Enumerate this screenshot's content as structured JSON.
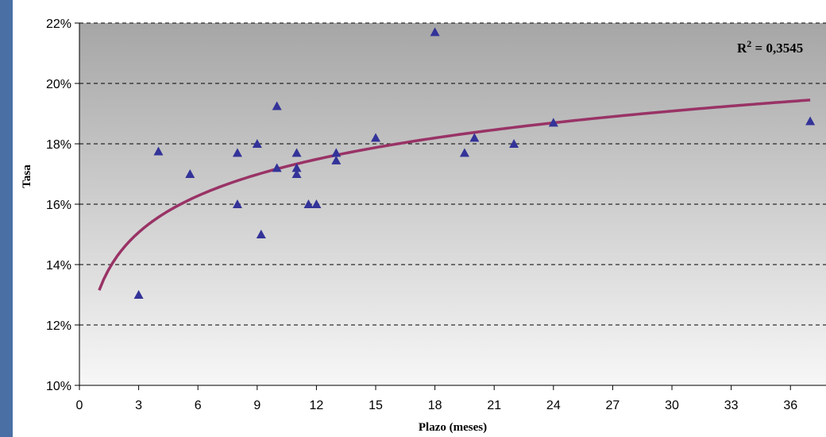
{
  "chart_data": {
    "type": "scatter",
    "xlabel": "Plazo (meses)",
    "ylabel": "Tasa",
    "xlim": [
      0,
      37.8
    ],
    "ylim": [
      10,
      22
    ],
    "x_ticks": [
      "0",
      "3",
      "6",
      "9",
      "12",
      "15",
      "18",
      "21",
      "24",
      "27",
      "30",
      "33",
      "36"
    ],
    "x_tick_values": [
      0,
      3,
      6,
      9,
      12,
      15,
      18,
      21,
      24,
      27,
      30,
      33,
      36
    ],
    "y_ticks": [
      "10%",
      "12%",
      "14%",
      "16%",
      "18%",
      "20%",
      "22%"
    ],
    "y_tick_values": [
      10,
      12,
      14,
      16,
      18,
      20,
      22
    ],
    "grid": "horizontal dashed",
    "marker_color": "#333399",
    "trend_color": "#993366",
    "points": [
      {
        "x": 3,
        "y": 13.0
      },
      {
        "x": 4,
        "y": 17.75
      },
      {
        "x": 5.6,
        "y": 17.0
      },
      {
        "x": 8,
        "y": 17.7
      },
      {
        "x": 8,
        "y": 16.0
      },
      {
        "x": 9,
        "y": 18.0
      },
      {
        "x": 9.2,
        "y": 15.0
      },
      {
        "x": 10,
        "y": 19.25
      },
      {
        "x": 10,
        "y": 17.2
      },
      {
        "x": 11,
        "y": 17.7
      },
      {
        "x": 11,
        "y": 17.2
      },
      {
        "x": 11,
        "y": 17.0
      },
      {
        "x": 11.6,
        "y": 16.0
      },
      {
        "x": 12,
        "y": 16.0
      },
      {
        "x": 13,
        "y": 17.7
      },
      {
        "x": 13,
        "y": 17.45
      },
      {
        "x": 15,
        "y": 18.2
      },
      {
        "x": 18,
        "y": 21.7
      },
      {
        "x": 19.5,
        "y": 17.7
      },
      {
        "x": 20,
        "y": 18.2
      },
      {
        "x": 22,
        "y": 18.0
      },
      {
        "x": 24,
        "y": 18.7
      },
      {
        "x": 37,
        "y": 18.75
      }
    ],
    "trendline": {
      "type": "logarithmic",
      "intercept": 13.15,
      "slope": 1.745,
      "x_range": [
        1,
        37
      ],
      "r2_label": "R",
      "r2_sup": "2",
      "r2_value": " = 0,3545"
    }
  }
}
